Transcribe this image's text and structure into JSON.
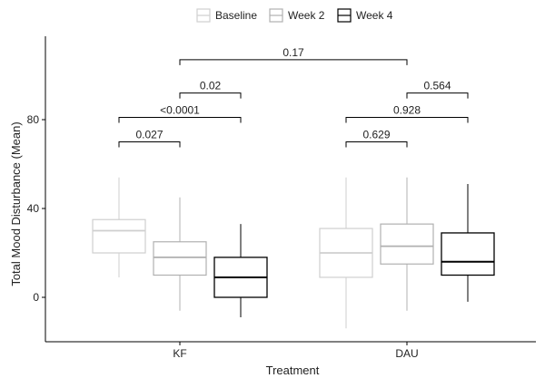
{
  "chart_data": {
    "type": "box",
    "title": "",
    "xlabel": "Treatment",
    "ylabel": "Total Mood Disturbance (Mean)",
    "categories": [
      "KF",
      "DAU"
    ],
    "ylim": [
      -20,
      100
    ],
    "yticks": [
      0,
      40,
      80
    ],
    "grid": false,
    "legend": {
      "position": "top-center"
    },
    "series": [
      {
        "name": "Baseline",
        "color": "#cfcfcf",
        "boxes": [
          {
            "category": "KF",
            "min": 9,
            "q1": 20,
            "median": 30,
            "q3": 35,
            "max": 54
          },
          {
            "category": "DAU",
            "min": -14,
            "q1": 9,
            "median": 20,
            "q3": 31,
            "max": 54
          }
        ]
      },
      {
        "name": "Week 2",
        "color": "#b0b0b0",
        "boxes": [
          {
            "category": "KF",
            "min": -6,
            "q1": 10,
            "median": 18,
            "q3": 25,
            "max": 45
          },
          {
            "category": "DAU",
            "min": -6,
            "q1": 15,
            "median": 23,
            "q3": 33,
            "max": 54
          }
        ]
      },
      {
        "name": "Week 4",
        "color": "#000000",
        "boxes": [
          {
            "category": "KF",
            "min": -9,
            "q1": 0,
            "median": 9,
            "q3": 18,
            "max": 33
          },
          {
            "category": "DAU",
            "min": -2,
            "q1": 10,
            "median": 16,
            "q3": 29,
            "max": 51
          }
        ]
      }
    ],
    "annotations": [
      {
        "label": "0.027",
        "from_category": "KF",
        "from_series": 0,
        "to_category": "KF",
        "to_series": 1,
        "y": 70
      },
      {
        "label": "<0.0001",
        "from_category": "KF",
        "from_series": 0,
        "to_category": "KF",
        "to_series": 2,
        "y": 81
      },
      {
        "label": "0.02",
        "from_category": "KF",
        "from_series": 1,
        "to_category": "KF",
        "to_series": 2,
        "y": 92
      },
      {
        "label": "0.17",
        "from_category": "KF",
        "from_series": 1,
        "to_category": "DAU",
        "to_series": 1,
        "y": 107
      },
      {
        "label": "0.629",
        "from_category": "DAU",
        "from_series": 0,
        "to_category": "DAU",
        "to_series": 1,
        "y": 70
      },
      {
        "label": "0.928",
        "from_category": "DAU",
        "from_series": 0,
        "to_category": "DAU",
        "to_series": 2,
        "y": 81
      },
      {
        "label": "0.564",
        "from_category": "DAU",
        "from_series": 1,
        "to_category": "DAU",
        "to_series": 2,
        "y": 92
      }
    ]
  }
}
